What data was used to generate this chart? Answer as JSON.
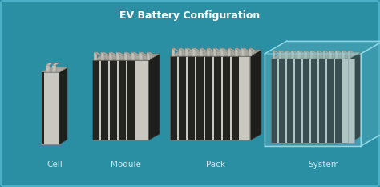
{
  "title": "EV Battery Configuration",
  "labels": [
    "Cell",
    "Module",
    "Pack",
    "System"
  ],
  "bg_color": "#2a8fa3",
  "title_color": "#ffffff",
  "label_color": "#cce8ee",
  "front_light": "#c8c8c0",
  "front_dark": "#232320",
  "side_dark": "#1e1e1c",
  "top_light": "#a8a8a0",
  "top_mid": "#909088",
  "tab_color": "#c0c0b8",
  "tab_dark": "#888880",
  "system_box": "#70bece",
  "system_box_side": "#5aacbe",
  "title_fontsize": 9,
  "label_fontsize": 7.5
}
